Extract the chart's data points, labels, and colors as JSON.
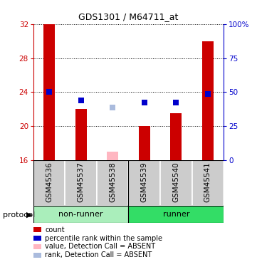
{
  "title": "GDS1301 / M64711_at",
  "samples": [
    "GSM45536",
    "GSM45537",
    "GSM45538",
    "GSM45539",
    "GSM45540",
    "GSM45541"
  ],
  "ylim_left": [
    16,
    32
  ],
  "ylim_right": [
    0,
    100
  ],
  "yticks_left": [
    16,
    20,
    24,
    28,
    32
  ],
  "yticks_right": [
    0,
    25,
    50,
    75,
    100
  ],
  "ytick_labels_right": [
    "0",
    "25",
    "50",
    "75",
    "100%"
  ],
  "bar_color": "#CC0000",
  "bar_absent_color": "#FFB6C1",
  "dot_color": "#0000CC",
  "dot_absent_color": "#AABBDD",
  "bar_values": [
    32,
    22,
    17.0,
    20,
    21.5,
    30
  ],
  "bar_bottom": 16,
  "bar_absent": [
    false,
    false,
    true,
    false,
    false,
    false
  ],
  "dot_values": [
    24.0,
    23.0,
    22.2,
    22.8,
    22.8,
    23.8
  ],
  "dot_absent": [
    false,
    false,
    true,
    false,
    false,
    false
  ],
  "bar_width": 0.35,
  "left_axis_color": "#CC0000",
  "right_axis_color": "#0000CC",
  "nonrunner_color": "#AAEEBB",
  "runner_color": "#33DD66",
  "sample_bg_color": "#CCCCCC",
  "legend_items": [
    {
      "label": "count",
      "color": "#CC0000"
    },
    {
      "label": "percentile rank within the sample",
      "color": "#0000CC"
    },
    {
      "label": "value, Detection Call = ABSENT",
      "color": "#FFB6C1"
    },
    {
      "label": "rank, Detection Call = ABSENT",
      "color": "#AABBDD"
    }
  ]
}
